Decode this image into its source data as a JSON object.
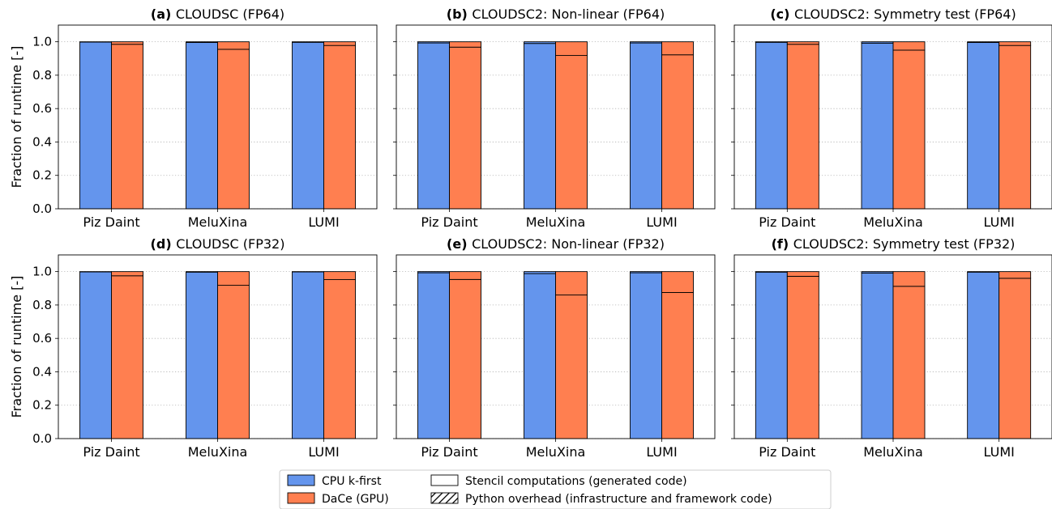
{
  "figure": {
    "y_axis_label": "Fraction of runtime [-]",
    "colors": {
      "cpu": "#6495ED",
      "dace": "#FF7F50",
      "grid": "#b0b0b0"
    },
    "legend": {
      "placement": "bottom-center",
      "items": [
        {
          "label": "CPU k-first",
          "kind": "color",
          "color": "#6495ED"
        },
        {
          "label": "DaCe (GPU)",
          "kind": "color",
          "color": "#FF7F50"
        },
        {
          "label": "Stencil computations (generated code)",
          "kind": "plain"
        },
        {
          "label": "Python overhead (infrastructure and framework code)",
          "kind": "hatched"
        }
      ]
    }
  },
  "chart_data": [
    {
      "type": "bar",
      "stacked": true,
      "panel_tag": "(a)",
      "title": "CLOUDSC (FP64)",
      "categories": [
        "Piz Daint",
        "MeluXina",
        "LUMI"
      ],
      "ylim": [
        0,
        1.1
      ],
      "yticks": [
        "0.0",
        "0.2",
        "0.4",
        "0.6",
        "0.8",
        "1.0"
      ],
      "grid": "horizontal-dotted",
      "series": [
        {
          "name": "CPU k-first",
          "stencil": [
            0.998,
            0.996,
            0.997
          ],
          "python_overhead": [
            0.002,
            0.004,
            0.003
          ]
        },
        {
          "name": "DaCe (GPU)",
          "stencil": [
            0.985,
            0.955,
            0.978
          ],
          "python_overhead": [
            0.015,
            0.045,
            0.022
          ]
        }
      ]
    },
    {
      "type": "bar",
      "stacked": true,
      "panel_tag": "(b)",
      "title": "CLOUDSC2: Non-linear (FP64)",
      "categories": [
        "Piz Daint",
        "MeluXina",
        "LUMI"
      ],
      "ylim": [
        0,
        1.1
      ],
      "yticks": [
        "0.0",
        "0.2",
        "0.4",
        "0.6",
        "0.8",
        "1.0"
      ],
      "grid": "horizontal-dotted",
      "series": [
        {
          "name": "CPU k-first",
          "stencil": [
            0.993,
            0.99,
            0.993
          ],
          "python_overhead": [
            0.007,
            0.01,
            0.007
          ]
        },
        {
          "name": "DaCe (GPU)",
          "stencil": [
            0.968,
            0.918,
            0.922
          ],
          "python_overhead": [
            0.032,
            0.082,
            0.078
          ]
        }
      ]
    },
    {
      "type": "bar",
      "stacked": true,
      "panel_tag": "(c)",
      "title": "CLOUDSC2: Symmetry test (FP64)",
      "categories": [
        "Piz Daint",
        "MeluXina",
        "LUMI"
      ],
      "ylim": [
        0,
        1.1
      ],
      "yticks": [
        "0.0",
        "0.2",
        "0.4",
        "0.6",
        "0.8",
        "1.0"
      ],
      "grid": "horizontal-dotted",
      "series": [
        {
          "name": "CPU k-first",
          "stencil": [
            0.997,
            0.992,
            0.996
          ],
          "python_overhead": [
            0.003,
            0.008,
            0.004
          ]
        },
        {
          "name": "DaCe (GPU)",
          "stencil": [
            0.985,
            0.95,
            0.978
          ],
          "python_overhead": [
            0.015,
            0.05,
            0.022
          ]
        }
      ]
    },
    {
      "type": "bar",
      "stacked": true,
      "panel_tag": "(d)",
      "title": "CLOUDSC (FP32)",
      "categories": [
        "Piz Daint",
        "MeluXina",
        "LUMI"
      ],
      "ylim": [
        0,
        1.1
      ],
      "yticks": [
        "0.0",
        "0.2",
        "0.4",
        "0.6",
        "0.8",
        "1.0"
      ],
      "grid": "horizontal-dotted",
      "series": [
        {
          "name": "CPU k-first",
          "stencil": [
            0.998,
            0.997,
            0.998
          ],
          "python_overhead": [
            0.002,
            0.003,
            0.002
          ]
        },
        {
          "name": "DaCe (GPU)",
          "stencil": [
            0.975,
            0.918,
            0.952
          ],
          "python_overhead": [
            0.025,
            0.082,
            0.048
          ]
        }
      ]
    },
    {
      "type": "bar",
      "stacked": true,
      "panel_tag": "(e)",
      "title": "CLOUDSC2: Non-linear (FP32)",
      "categories": [
        "Piz Daint",
        "MeluXina",
        "LUMI"
      ],
      "ylim": [
        0,
        1.1
      ],
      "yticks": [
        "0.0",
        "0.2",
        "0.4",
        "0.6",
        "0.8",
        "1.0"
      ],
      "grid": "horizontal-dotted",
      "series": [
        {
          "name": "CPU k-first",
          "stencil": [
            0.993,
            0.988,
            0.993
          ],
          "python_overhead": [
            0.007,
            0.012,
            0.007
          ]
        },
        {
          "name": "DaCe (GPU)",
          "stencil": [
            0.953,
            0.86,
            0.875
          ],
          "python_overhead": [
            0.047,
            0.14,
            0.125
          ]
        }
      ]
    },
    {
      "type": "bar",
      "stacked": true,
      "panel_tag": "(f)",
      "title": "CLOUDSC2: Symmetry test (FP32)",
      "categories": [
        "Piz Daint",
        "MeluXina",
        "LUMI"
      ],
      "ylim": [
        0,
        1.1
      ],
      "yticks": [
        "0.0",
        "0.2",
        "0.4",
        "0.6",
        "0.8",
        "1.0"
      ],
      "grid": "horizontal-dotted",
      "series": [
        {
          "name": "CPU k-first",
          "stencil": [
            0.997,
            0.992,
            0.997
          ],
          "python_overhead": [
            0.003,
            0.008,
            0.003
          ]
        },
        {
          "name": "DaCe (GPU)",
          "stencil": [
            0.972,
            0.912,
            0.96
          ],
          "python_overhead": [
            0.028,
            0.088,
            0.04
          ]
        }
      ]
    }
  ]
}
